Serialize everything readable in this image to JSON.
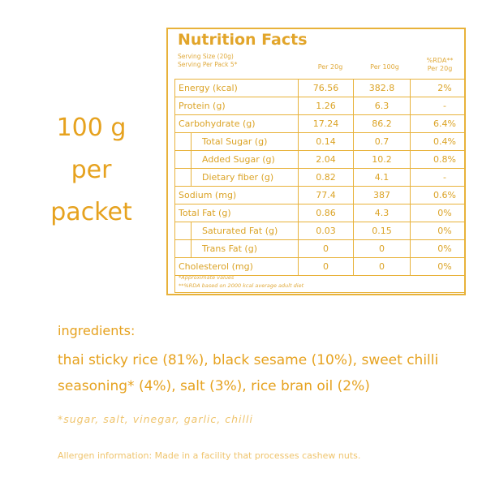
{
  "headline": [
    "100 g",
    "per",
    "packet"
  ],
  "nutrition": {
    "title": "Nutrition Facts",
    "serving_size": "Serving Size (20g)",
    "serving_per_pack": "Serving Per Pack 5*",
    "col_per20": "Per 20g",
    "col_per100": "Per 100g",
    "col_rda_1": "%RDA**",
    "col_rda_2": "Per 20g",
    "rows": [
      {
        "name": "Energy (kcal)",
        "v20": "76.56",
        "v100": "382.8",
        "rda": "2%",
        "sub": false
      },
      {
        "name": "Protein (g)",
        "v20": "1.26",
        "v100": "6.3",
        "rda": "-",
        "sub": false
      },
      {
        "name": "Carbohydrate (g)",
        "v20": "17.24",
        "v100": "86.2",
        "rda": "6.4%",
        "sub": false
      },
      {
        "name": "Total Sugar (g)",
        "v20": "0.14",
        "v100": "0.7",
        "rda": "0.4%",
        "sub": true
      },
      {
        "name": "Added Sugar (g)",
        "v20": "2.04",
        "v100": "10.2",
        "rda": "0.8%",
        "sub": true
      },
      {
        "name": "Dietary fiber (g)",
        "v20": "0.82",
        "v100": "4.1",
        "rda": "-",
        "sub": true
      },
      {
        "name": "Sodium (mg)",
        "v20": "77.4",
        "v100": "387",
        "rda": "0.6%",
        "sub": false
      },
      {
        "name": "Total Fat (g)",
        "v20": "0.86",
        "v100": "4.3",
        "rda": "0%",
        "sub": false
      },
      {
        "name": "Saturated Fat (g)",
        "v20": "0.03",
        "v100": "0.15",
        "rda": "0%",
        "sub": true
      },
      {
        "name": "Trans Fat (g)",
        "v20": "0",
        "v100": "0",
        "rda": "0%",
        "sub": true
      },
      {
        "name": "Cholesterol (mg)",
        "v20": "0",
        "v100": "0",
        "rda": "0%",
        "sub": false
      }
    ],
    "note_1": "*Approximate values",
    "note_2": "**%RDA based on 2000 kcal average adult diet"
  },
  "ingredients": {
    "label": "ingredients:",
    "text": "thai sticky rice (81%), black sesame (10%), sweet chilli seasoning* (4%), salt (3%), rice bran oil (2%)",
    "seasoning_note": "*sugar, salt, vinegar, garlic, chilli"
  },
  "allergen": "Allergen information: Made in a facility that processes cashew nuts."
}
